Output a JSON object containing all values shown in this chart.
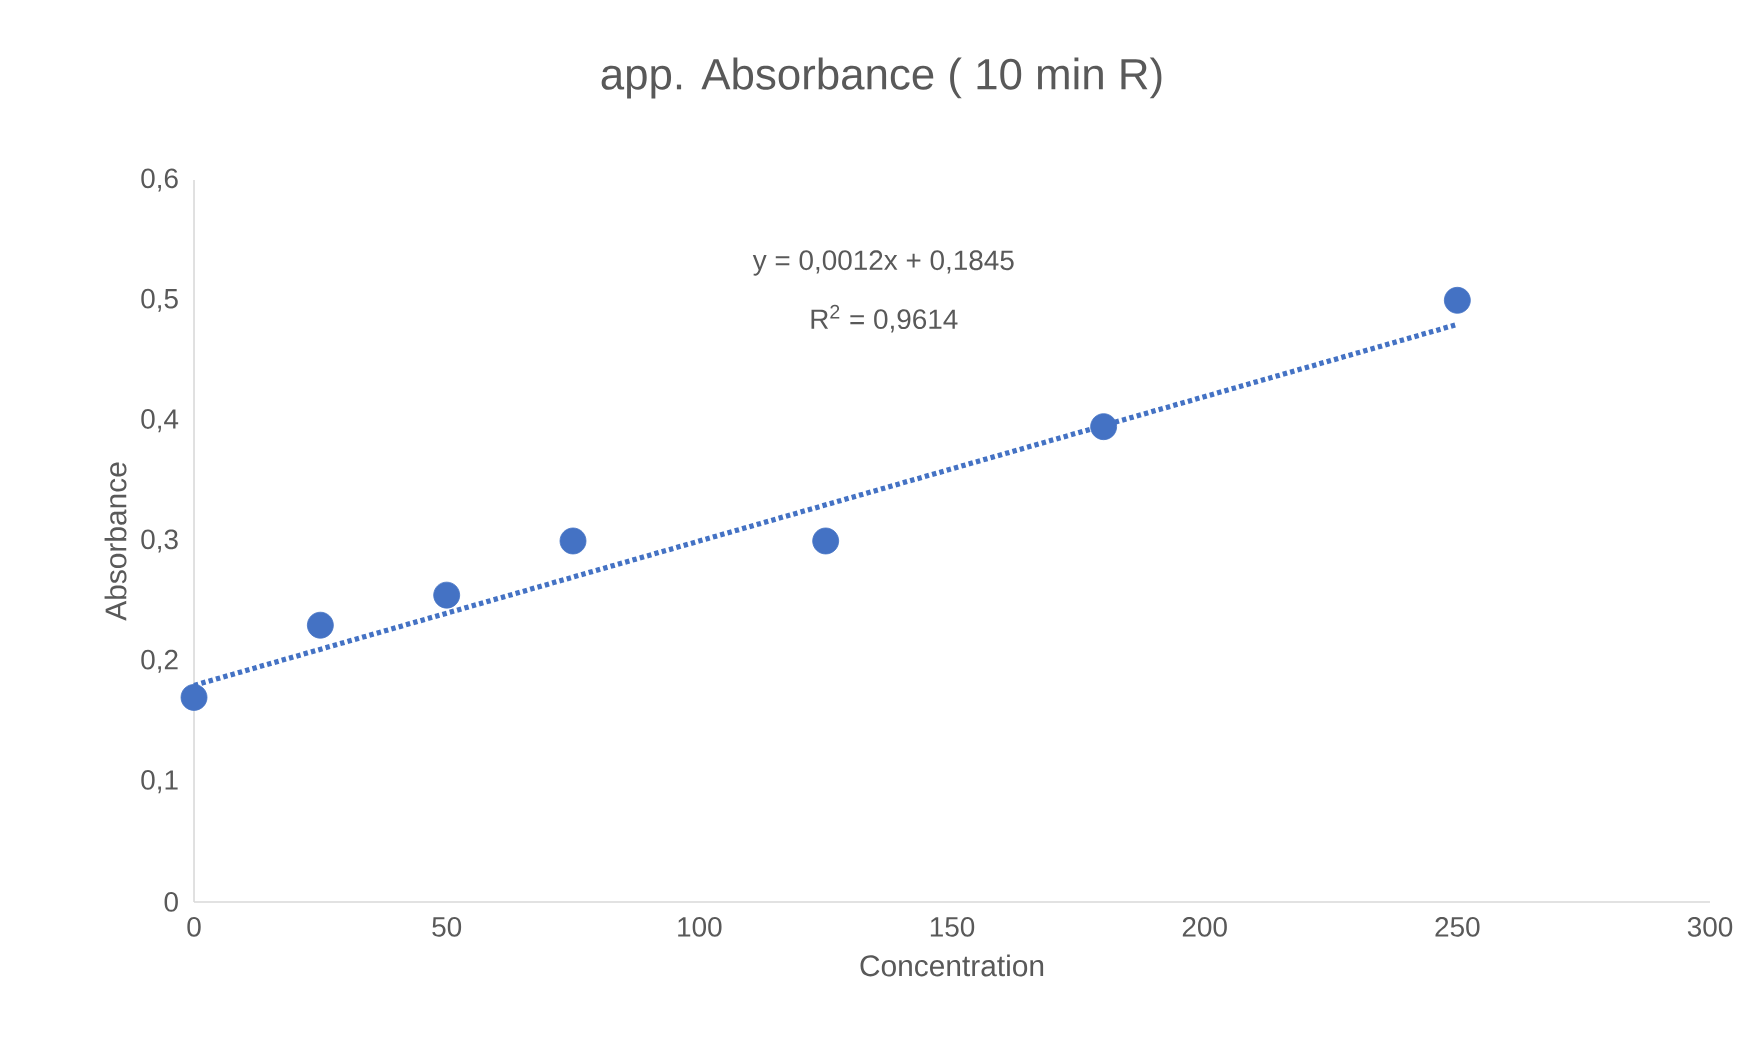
{
  "chart_data": {
    "type": "scatter",
    "title": "app. Absorbance ( 10 min R)",
    "xlabel": "Concentration",
    "ylabel": "Absorbance",
    "x": [
      0,
      25,
      50,
      75,
      125,
      180,
      250
    ],
    "series": [
      {
        "color": "#4472c4",
        "marker": "circle",
        "values": [
          0.17,
          0.23,
          0.255,
          0.3,
          0.3,
          0.395,
          0.5
        ]
      },
      {
        "type": "line",
        "color": "#4472c4",
        "line_style": "dotted",
        "marker": "none",
        "x": [
          0,
          250
        ],
        "values": [
          0.18,
          0.48
        ]
      }
    ],
    "annotations": [
      "y = 0,0012x + 0,1845",
      "R$^{2}$ = 0,9614"
    ],
    "xlim": [
      0,
      300
    ],
    "xticks": [
      0,
      50,
      100,
      150,
      200,
      250,
      300
    ],
    "ylim": [
      0,
      0.6
    ],
    "yticks": [
      0,
      {
        "value": 0.1,
        "label": "0,1"
      },
      {
        "value": 0.2,
        "label": "0,2"
      },
      {
        "value": 0.3,
        "label": "0,3"
      },
      {
        "value": 0.4,
        "label": "0,4"
      },
      {
        "value": 0.5,
        "label": "0,5"
      },
      {
        "value": 0.6,
        "label": "0,6"
      }
    ],
    "grid": false
  }
}
